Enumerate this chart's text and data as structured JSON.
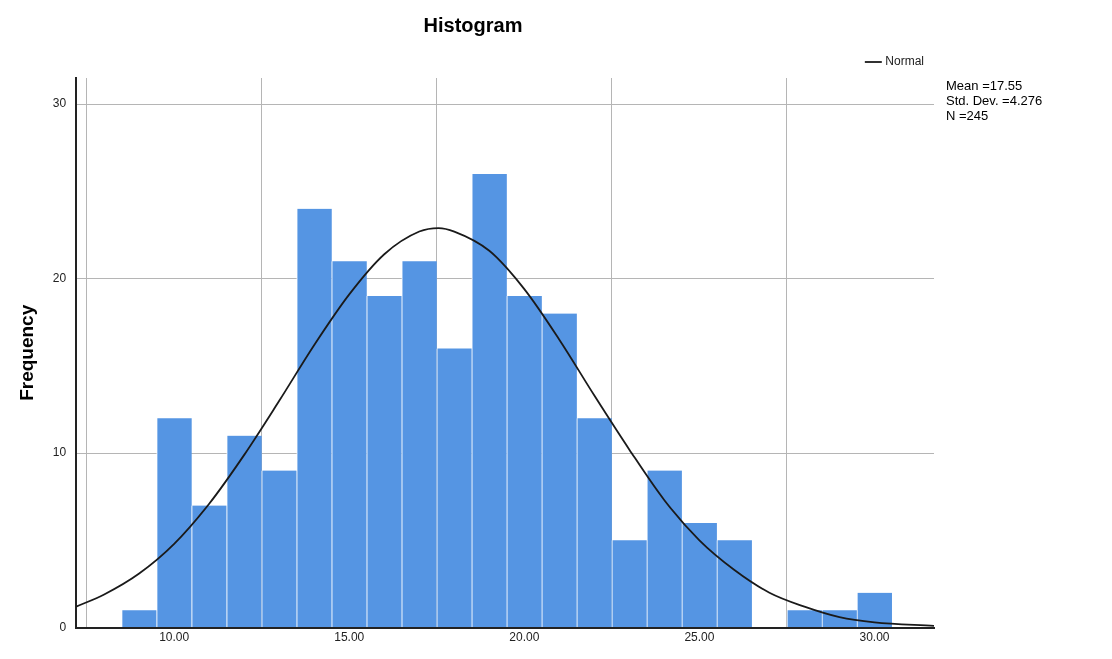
{
  "chart_data": {
    "type": "histogram",
    "title": "Histogram",
    "ylabel": "Frequency",
    "bins": [
      8.5,
      9.5,
      10.5,
      11.5,
      12.5,
      13.5,
      14.5,
      15.5,
      16.5,
      17.5,
      18.5,
      19.5,
      20.5,
      21.5,
      22.5,
      23.5,
      24.5,
      25.5,
      26.5,
      27.5,
      28.5,
      29.5,
      30.5
    ],
    "values": [
      1,
      12,
      7,
      11,
      9,
      24,
      21,
      19,
      21,
      16,
      26,
      19,
      18,
      12,
      5,
      9,
      6,
      5,
      0,
      1,
      1,
      2
    ],
    "color": "#5595e3",
    "series": [
      {
        "type": "line",
        "name": "Normal",
        "color": "#1a1a1a",
        "x": [
          7.2,
          8,
          9,
          10,
          11,
          12,
          13,
          14,
          15,
          16,
          17,
          17.55,
          18,
          19,
          20,
          21,
          22,
          23,
          24,
          25,
          26,
          27,
          28,
          29,
          30,
          31.7
        ],
        "values": [
          1.2,
          1.9,
          3.1,
          4.8,
          7.1,
          9.9,
          13,
          16.2,
          19.1,
          21.4,
          22.7,
          22.9,
          22.7,
          21.6,
          19.4,
          16.5,
          13.3,
          10.2,
          7.3,
          5,
          3.3,
          2,
          1.2,
          0.6,
          0.3,
          0.1
        ]
      }
    ],
    "xlim": [
      7.2,
      31.7
    ],
    "xticks": [
      {
        "value": 10,
        "label": "10.00"
      },
      {
        "value": 15,
        "label": "15.00"
      },
      {
        "value": 20,
        "label": "20.00"
      },
      {
        "value": 25,
        "label": "25.00"
      },
      {
        "value": 30,
        "label": "30.00"
      }
    ],
    "ylim": [
      0,
      31.5
    ],
    "yticks": [
      0,
      10,
      20,
      30
    ],
    "grid": true,
    "legend": "top right",
    "marker": "none",
    "line_style": "solid",
    "annotations": [
      "Mean =17.55",
      "Std. Dev. =4.276",
      "N =245"
    ]
  }
}
